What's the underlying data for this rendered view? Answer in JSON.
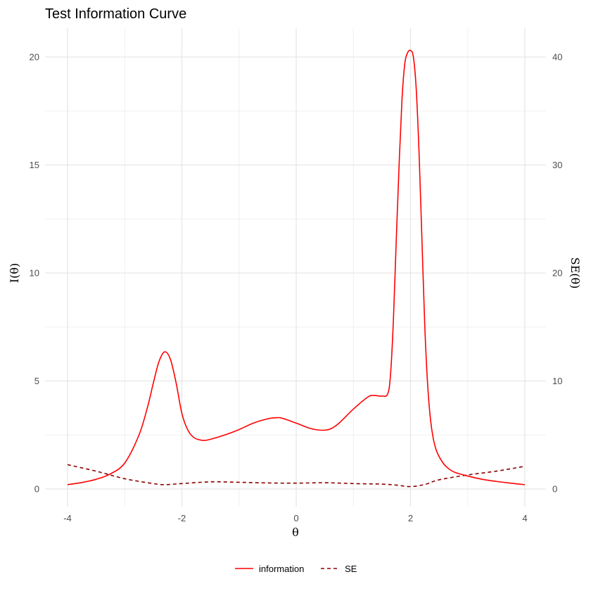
{
  "chart_data": {
    "type": "line",
    "title": "Test Information Curve",
    "xlabel": "θ",
    "ylabel_left": "I(θ)",
    "ylabel_right": "SE(θ)",
    "xlim": [
      -4,
      4
    ],
    "ylim_left": [
      0,
      21
    ],
    "ylim_right": [
      0,
      42
    ],
    "x_ticks": [
      "-4",
      "-2",
      "0",
      "2",
      "4"
    ],
    "y_left_ticks": [
      "0",
      "5",
      "10",
      "15",
      "20"
    ],
    "y_right_ticks": [
      "0",
      "10",
      "20",
      "30",
      "40"
    ],
    "grid": true,
    "legend_position": "bottom",
    "series": [
      {
        "name": "information",
        "axis": "left",
        "color": "#ff0000",
        "line_style": "solid",
        "x": [
          -4,
          -3.75,
          -3.5,
          -3.25,
          -3.0,
          -2.75,
          -2.6,
          -2.5,
          -2.4,
          -2.3,
          -2.2,
          -2.1,
          -2.0,
          -1.9,
          -1.8,
          -1.7,
          -1.6,
          -1.5,
          -1.25,
          -1.0,
          -0.75,
          -0.5,
          -0.35,
          -0.25,
          0,
          0.25,
          0.45,
          0.6,
          0.75,
          1.0,
          1.25,
          1.35,
          1.5,
          1.6,
          1.65,
          1.7,
          1.75,
          1.8,
          1.85,
          1.9,
          1.95,
          2.0,
          2.05,
          2.1,
          2.15,
          2.2,
          2.25,
          2.3,
          2.35,
          2.4,
          2.45,
          2.5,
          2.6,
          2.75,
          3.0,
          3.25,
          3.5,
          3.75,
          4.0
        ],
        "y": [
          0.2,
          0.3,
          0.45,
          0.7,
          1.2,
          2.5,
          3.8,
          4.9,
          5.9,
          6.35,
          6.0,
          4.9,
          3.5,
          2.75,
          2.4,
          2.28,
          2.25,
          2.3,
          2.5,
          2.75,
          3.05,
          3.25,
          3.3,
          3.28,
          3.05,
          2.8,
          2.72,
          2.78,
          3.05,
          3.7,
          4.25,
          4.33,
          4.3,
          4.4,
          5.3,
          7.8,
          11.5,
          15.0,
          18.0,
          19.7,
          20.2,
          20.3,
          20.0,
          18.5,
          15.5,
          11.5,
          7.5,
          4.8,
          3.2,
          2.3,
          1.8,
          1.5,
          1.1,
          0.8,
          0.6,
          0.45,
          0.35,
          0.27,
          0.2
        ]
      },
      {
        "name": "SE",
        "axis": "right",
        "color": "#8b0000",
        "line_style": "dashed",
        "x": [
          -4,
          -3.5,
          -3.0,
          -2.5,
          -2.3,
          -2.0,
          -1.5,
          -1.0,
          -0.5,
          0,
          0.5,
          1.0,
          1.5,
          1.75,
          2.0,
          2.25,
          2.5,
          3.0,
          3.5,
          4.0
        ],
        "y": [
          2.25,
          1.65,
          0.95,
          0.5,
          0.4,
          0.5,
          0.66,
          0.62,
          0.56,
          0.54,
          0.58,
          0.5,
          0.45,
          0.36,
          0.22,
          0.42,
          0.85,
          1.3,
          1.65,
          2.1
        ]
      }
    ]
  }
}
